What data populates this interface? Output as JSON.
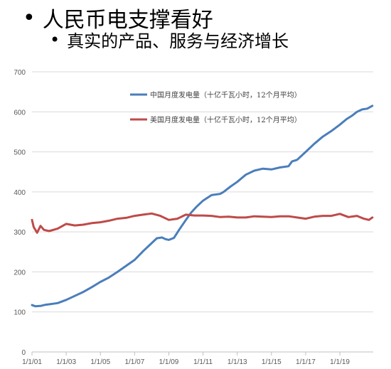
{
  "slide": {
    "bullet1": "人民币电支撑看好",
    "bullet2": "真实的产品、服务与经济增长",
    "bullet_glyph": "•"
  },
  "chart_data": {
    "type": "line",
    "ylim": [
      0,
      700
    ],
    "yticks": [
      0,
      100,
      200,
      300,
      400,
      500,
      600,
      700
    ],
    "xlim": [
      2001.0,
      2020.95
    ],
    "xtick_labels": [
      "1/1/01",
      "1/1/03",
      "1/1/05",
      "1/1/07",
      "1/1/09",
      "1/1/11",
      "1/1/13",
      "1/1/15",
      "1/1/17",
      "1/1/19"
    ],
    "xtick_years": [
      2001,
      2003,
      2005,
      2007,
      2009,
      2011,
      2013,
      2015,
      2017,
      2019
    ],
    "gridlines": "horizontal",
    "legend_position": "upper-middle",
    "series": [
      {
        "name": "中国月度发电量（十亿千瓦小时，12个月平均）",
        "color": "#4a7ebb",
        "x": [
          2001.0,
          2001.2,
          2001.5,
          2001.8,
          2002.0,
          2002.5,
          2003.0,
          2003.5,
          2004.0,
          2004.5,
          2005.0,
          2005.5,
          2006.0,
          2006.5,
          2007.0,
          2007.5,
          2008.0,
          2008.3,
          2008.6,
          2008.8,
          2009.0,
          2009.3,
          2009.6,
          2010.0,
          2010.3,
          2010.6,
          2011.0,
          2011.5,
          2012.0,
          2012.2,
          2012.6,
          2013.0,
          2013.5,
          2014.0,
          2014.5,
          2015.0,
          2015.5,
          2016.0,
          2016.2,
          2016.5,
          2017.0,
          2017.5,
          2018.0,
          2018.5,
          2019.0,
          2019.4,
          2019.7,
          2020.0,
          2020.3,
          2020.6,
          2020.9
        ],
        "values": [
          117,
          114,
          115,
          118,
          119,
          122,
          130,
          140,
          150,
          162,
          175,
          186,
          200,
          215,
          230,
          252,
          272,
          284,
          286,
          282,
          280,
          285,
          305,
          330,
          348,
          362,
          378,
          392,
          395,
          400,
          413,
          425,
          443,
          453,
          458,
          456,
          461,
          464,
          476,
          480,
          500,
          520,
          538,
          552,
          568,
          582,
          590,
          600,
          606,
          608,
          615
        ]
      },
      {
        "name": "美国月度发电量（十亿千瓦小时，12个月平均）",
        "color": "#be4b48",
        "x": [
          2001.0,
          2001.1,
          2001.3,
          2001.5,
          2001.7,
          2002.0,
          2002.5,
          2003.0,
          2003.5,
          2004.0,
          2004.5,
          2005.0,
          2005.5,
          2006.0,
          2006.5,
          2007.0,
          2007.5,
          2008.0,
          2008.5,
          2009.0,
          2009.5,
          2010.0,
          2010.5,
          2011.0,
          2011.5,
          2012.0,
          2012.5,
          2013.0,
          2013.5,
          2014.0,
          2014.5,
          2015.0,
          2015.5,
          2016.0,
          2016.5,
          2017.0,
          2017.5,
          2018.0,
          2018.5,
          2019.0,
          2019.5,
          2020.0,
          2020.4,
          2020.7,
          2020.9
        ],
        "values": [
          330,
          312,
          298,
          315,
          305,
          302,
          308,
          320,
          316,
          318,
          322,
          324,
          328,
          333,
          335,
          340,
          343,
          346,
          340,
          330,
          333,
          343,
          341,
          341,
          340,
          337,
          338,
          336,
          336,
          339,
          338,
          337,
          339,
          339,
          336,
          333,
          338,
          340,
          340,
          345,
          337,
          340,
          333,
          330,
          336
        ]
      }
    ]
  }
}
